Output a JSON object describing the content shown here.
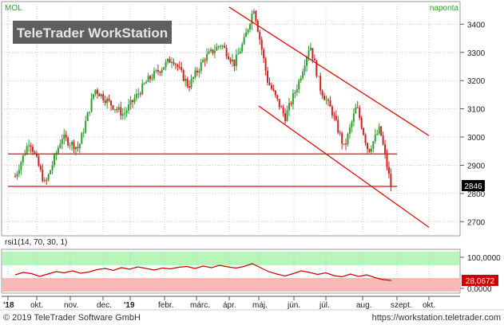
{
  "header": {
    "symbol": "MOL",
    "interval": "naponta",
    "watermark": "TeleTrader WorkStation"
  },
  "footer": {
    "copyright": "© 2019 TeleTrader Software GmbH",
    "url": "https://workstation.teletrader.com"
  },
  "colors": {
    "up": "#2e9e2e",
    "down": "#cc2222",
    "trend": "#dd1111",
    "rsi_line": "#cc0000",
    "overbought_band": "#b8f5b8",
    "oversold_band": "#f7b8b8",
    "last_price_box": "#000000",
    "rsi_last_box": "#cc0000"
  },
  "chart_data": [
    {
      "type": "candlestick",
      "title": "MOL",
      "interval": "naponta",
      "x_months": [
        "'18",
        "okt.",
        "nov.",
        "dec.",
        "'19",
        "febr.",
        "márc.",
        "ápr.",
        "máj.",
        "jún.",
        "júl.",
        "aug.",
        "szept.",
        "okt."
      ],
      "y_ticks": [
        2700,
        2800,
        2900,
        3000,
        3100,
        3200,
        3300,
        3400
      ],
      "ylim": [
        2650,
        3480
      ],
      "last_price": "2846",
      "grid": "dotted",
      "approx_close_path": [
        {
          "month": "'18",
          "close": 2860
        },
        {
          "month": "'18",
          "close": 2990
        },
        {
          "month": "okt.",
          "close": 2830
        },
        {
          "month": "okt.",
          "close": 3000
        },
        {
          "month": "nov.",
          "close": 2960
        },
        {
          "month": "nov.",
          "close": 3170
        },
        {
          "month": "dec.",
          "close": 3120
        },
        {
          "month": "dec.",
          "close": 3080
        },
        {
          "month": "'19",
          "close": 3200
        },
        {
          "month": "febr.",
          "close": 3280
        },
        {
          "month": "febr.",
          "close": 3180
        },
        {
          "month": "márc.",
          "close": 3280
        },
        {
          "month": "márc.",
          "close": 3330
        },
        {
          "month": "ápr.",
          "close": 3260
        },
        {
          "month": "ápr.",
          "close": 3340
        },
        {
          "month": "ápr.",
          "close": 3460
        },
        {
          "month": "máj.",
          "close": 3200
        },
        {
          "month": "máj.",
          "close": 3070
        },
        {
          "month": "jún.",
          "close": 3200
        },
        {
          "month": "jún.",
          "close": 3330
        },
        {
          "month": "jún.",
          "close": 3170
        },
        {
          "month": "júl.",
          "close": 3090
        },
        {
          "month": "júl.",
          "close": 2960
        },
        {
          "month": "júl.",
          "close": 3110
        },
        {
          "month": "aug.",
          "close": 2950
        },
        {
          "month": "aug.",
          "close": 3030
        },
        {
          "month": "aug.",
          "close": 2820
        }
      ],
      "trendlines": [
        {
          "from": {
            "month": "'18",
            "price": 2825
          },
          "to": {
            "month": "aug.",
            "price": 2825
          }
        },
        {
          "from": {
            "month": "'18",
            "price": 2940
          },
          "to": {
            "month": "aug.",
            "price": 2940
          }
        },
        {
          "from": {
            "month": "ápr.",
            "price": 3460
          },
          "to": {
            "month": "szept.",
            "price": 3005
          }
        },
        {
          "from": {
            "month": "máj.",
            "price": 3110
          },
          "to": {
            "month": "szept.",
            "price": 2680
          }
        }
      ]
    },
    {
      "type": "line",
      "title": "rsi1(14, 70, 30, 1)",
      "y_ticks": [
        "100,0000",
        "0,0000"
      ],
      "last_value": "28,0672",
      "bands": {
        "overbought": "70",
        "oversold": "30"
      },
      "approx_values": [
        42,
        48,
        45,
        38,
        44,
        50,
        47,
        52,
        46,
        49,
        55,
        58,
        53,
        60,
        56,
        62,
        58,
        54,
        59,
        57,
        61,
        63,
        58,
        64,
        60,
        66,
        62,
        59,
        63,
        70,
        60,
        50,
        44,
        39,
        45,
        52,
        48,
        43,
        47,
        40,
        37,
        44,
        38,
        42,
        35,
        30,
        28
      ]
    }
  ]
}
